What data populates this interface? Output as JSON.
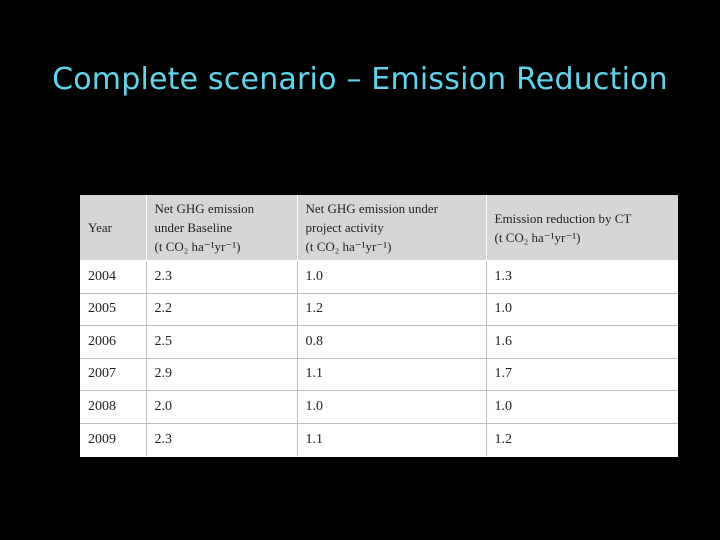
{
  "slide": {
    "title": "Complete scenario – Emission Reduction"
  },
  "table": {
    "headers": [
      {
        "lines": [
          "Year"
        ]
      },
      {
        "lines": [
          "Net GHG emission",
          "under Baseline",
          "(t CO₂ ha⁻¹yr⁻¹)"
        ]
      },
      {
        "lines": [
          "Net GHG emission under",
          "project activity",
          "(t CO₂ ha⁻¹yr⁻¹)"
        ]
      },
      {
        "lines": [
          "Emission reduction by CT",
          "(t CO₂ ha⁻¹yr⁻¹)"
        ]
      }
    ],
    "rows": [
      [
        "2004",
        "2.3",
        "1.0",
        "1.3"
      ],
      [
        "2005",
        "2.2",
        "1.2",
        "1.0"
      ],
      [
        "2006",
        "2.5",
        "0.8",
        "1.6"
      ],
      [
        "2007",
        "2.9",
        "1.1",
        "1.7"
      ],
      [
        "2008",
        "2.0",
        "1.0",
        "1.0"
      ],
      [
        "2009",
        "2.3",
        "1.1",
        "1.2"
      ]
    ]
  },
  "colors": {
    "background": "#000000",
    "title": "#5fd6ee",
    "header_fill": "#d6d6d6"
  }
}
